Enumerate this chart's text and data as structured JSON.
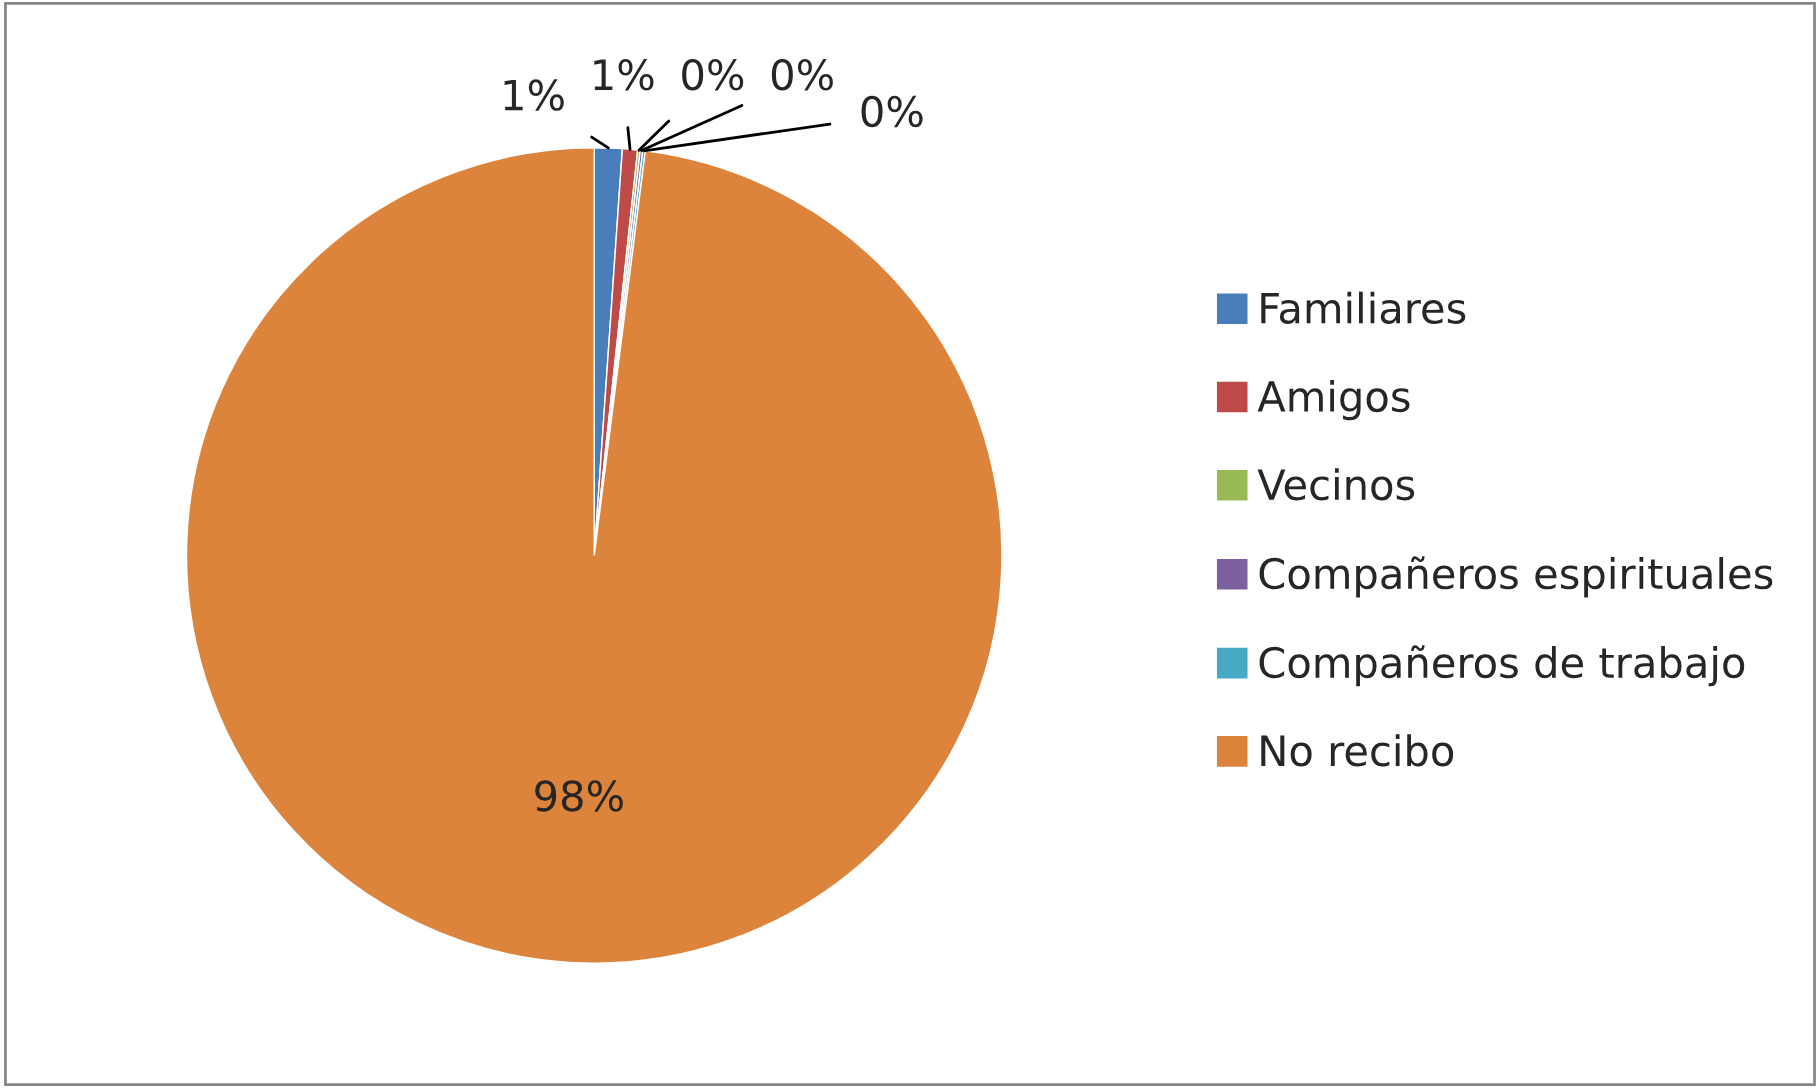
{
  "chart_data": {
    "type": "pie",
    "categories": [
      "Familiares",
      "Amigos",
      "Vecinos",
      "Compañeros espirituales",
      "Compañeros de trabajo",
      "No recibo"
    ],
    "values": [
      1.1,
      0.6,
      0.1,
      0.1,
      0.1,
      98
    ],
    "value_labels": [
      "1%",
      "1%",
      "0%",
      "0%",
      "0%",
      "98%"
    ],
    "colors": [
      "#4a7ebb",
      "#be4b48",
      "#98b954",
      "#7d60a0",
      "#46aac5",
      "#dd843c"
    ],
    "legend": "right"
  }
}
